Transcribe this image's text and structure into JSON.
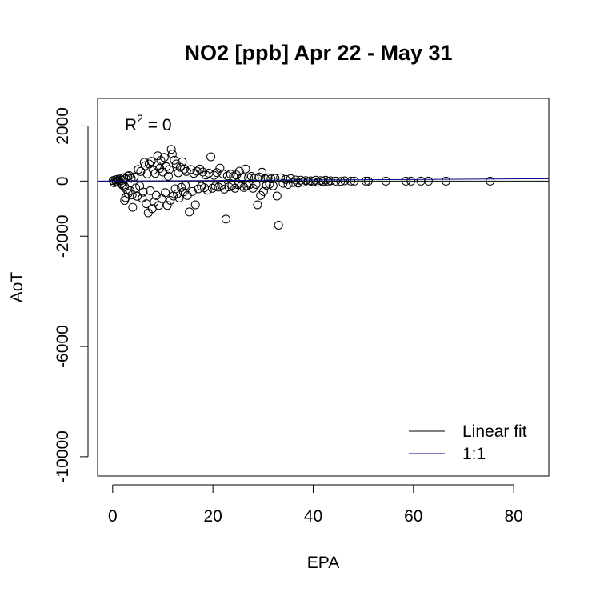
{
  "chart_data": {
    "type": "scatter",
    "title": "NO2 [ppb] Apr 22 - May 31",
    "xlabel": "EPA",
    "ylabel": "AoT",
    "xlim": [
      -3,
      87
    ],
    "ylim": [
      -10700,
      3000
    ],
    "xticks": [
      0,
      20,
      40,
      60,
      80
    ],
    "yticks": [
      2000,
      0,
      -2000,
      -6000,
      -10000
    ],
    "xtick_labels": [
      "0",
      "20",
      "40",
      "60",
      "80"
    ],
    "ytick_labels": [
      "2000",
      "0",
      "-2000",
      "-6000",
      "-10000"
    ],
    "annotation": {
      "base": "R",
      "sup": "2",
      "rest": " = 0"
    },
    "marker": "open-circle",
    "grid": false,
    "legend_position": "bottom-right",
    "legend": [
      {
        "label": "Linear fit",
        "color": "#000000"
      },
      {
        "label": "1:1",
        "color": "#00008b"
      }
    ],
    "lines": [
      {
        "name": "Linear fit",
        "color": "#000000",
        "x": [
          -3,
          87
        ],
        "y": [
          0,
          0
        ]
      },
      {
        "name": "1:1",
        "color": "#00008b",
        "x": [
          -3,
          87
        ],
        "y": [
          -3,
          87
        ]
      }
    ],
    "points": [
      [
        0.1,
        20
      ],
      [
        0.3,
        -60
      ],
      [
        0.5,
        40
      ],
      [
        0.7,
        -20
      ],
      [
        0.9,
        60
      ],
      [
        1.1,
        -40
      ],
      [
        1.3,
        10
      ],
      [
        1.5,
        80
      ],
      [
        1.7,
        -90
      ],
      [
        1.9,
        30
      ],
      [
        2.0,
        -150
      ],
      [
        2.2,
        120
      ],
      [
        2.4,
        -200
      ],
      [
        2.6,
        90
      ],
      [
        2.8,
        -300
      ],
      [
        3.0,
        180
      ],
      [
        2.4,
        -700
      ],
      [
        2.6,
        -600
      ],
      [
        3.1,
        -450
      ],
      [
        3.3,
        200
      ],
      [
        3.5,
        -350
      ],
      [
        3.7,
        100
      ],
      [
        3.9,
        -500
      ],
      [
        4.0,
        -950
      ],
      [
        4.3,
        150
      ],
      [
        4.6,
        -250
      ],
      [
        4.9,
        -550
      ],
      [
        5.1,
        420
      ],
      [
        5.4,
        -180
      ],
      [
        5.6,
        350
      ],
      [
        5.9,
        -620
      ],
      [
        6.1,
        -400
      ],
      [
        6.3,
        680
      ],
      [
        6.5,
        560
      ],
      [
        6.7,
        -820
      ],
      [
        6.9,
        260
      ],
      [
        7.1,
        -1150
      ],
      [
        7.3,
        620
      ],
      [
        7.5,
        -350
      ],
      [
        7.7,
        720
      ],
      [
        7.9,
        -1000
      ],
      [
        8.1,
        400
      ],
      [
        8.3,
        -760
      ],
      [
        8.5,
        280
      ],
      [
        8.7,
        -520
      ],
      [
        8.9,
        560
      ],
      [
        9.0,
        920
      ],
      [
        9.2,
        -880
      ],
      [
        9.4,
        460
      ],
      [
        9.6,
        750
      ],
      [
        9.8,
        -640
      ],
      [
        10.0,
        330
      ],
      [
        10.3,
        860
      ],
      [
        10.5,
        -420
      ],
      [
        10.7,
        520
      ],
      [
        10.9,
        -880
      ],
      [
        11.1,
        180
      ],
      [
        11.3,
        420
      ],
      [
        11.5,
        -700
      ],
      [
        11.7,
        1150
      ],
      [
        11.9,
        980
      ],
      [
        12.1,
        -540
      ],
      [
        12.3,
        760
      ],
      [
        12.5,
        -280
      ],
      [
        12.7,
        620
      ],
      [
        12.9,
        -460
      ],
      [
        13.1,
        300
      ],
      [
        13.3,
        -610
      ],
      [
        13.5,
        500
      ],
      [
        13.7,
        -230
      ],
      [
        13.9,
        700
      ],
      [
        14.1,
        -390
      ],
      [
        14.3,
        440
      ],
      [
        14.5,
        -160
      ],
      [
        14.7,
        350
      ],
      [
        14.9,
        -520
      ],
      [
        15.3,
        -1120
      ],
      [
        15.6,
        420
      ],
      [
        15.9,
        -380
      ],
      [
        16.2,
        280
      ],
      [
        16.5,
        -860
      ],
      [
        16.8,
        360
      ],
      [
        17.1,
        -280
      ],
      [
        17.4,
        440
      ],
      [
        17.7,
        -190
      ],
      [
        18.0,
        330
      ],
      [
        18.3,
        -240
      ],
      [
        18.6,
        220
      ],
      [
        18.9,
        -330
      ],
      [
        19.2,
        290
      ],
      [
        19.6,
        880
      ],
      [
        19.9,
        -260
      ],
      [
        20.2,
        210
      ],
      [
        20.5,
        -180
      ],
      [
        20.8,
        310
      ],
      [
        21.1,
        -220
      ],
      [
        21.4,
        470
      ],
      [
        21.7,
        -150
      ],
      [
        22.0,
        260
      ],
      [
        22.3,
        -290
      ],
      [
        22.6,
        -1380
      ],
      [
        22.9,
        190
      ],
      [
        23.2,
        -210
      ],
      [
        23.5,
        250
      ],
      [
        23.8,
        -160
      ],
      [
        24.1,
        170
      ],
      [
        24.4,
        -260
      ],
      [
        24.7,
        220
      ],
      [
        25.0,
        -130
      ],
      [
        25.3,
        360
      ],
      [
        25.6,
        -190
      ],
      [
        25.9,
        130
      ],
      [
        26.2,
        -230
      ],
      [
        26.5,
        440
      ],
      [
        26.8,
        -170
      ],
      [
        27.1,
        120
      ],
      [
        27.4,
        -120
      ],
      [
        27.7,
        170
      ],
      [
        28.0,
        -260
      ],
      [
        28.3,
        100
      ],
      [
        28.6,
        -120
      ],
      [
        28.9,
        -860
      ],
      [
        29.2,
        150
      ],
      [
        29.5,
        -520
      ],
      [
        29.8,
        320
      ],
      [
        30.1,
        -380
      ],
      [
        30.4,
        90
      ],
      [
        30.7,
        -150
      ],
      [
        31.0,
        120
      ],
      [
        31.3,
        -110
      ],
      [
        31.6,
        80
      ],
      [
        32.0,
        -170
      ],
      [
        32.4,
        100
      ],
      [
        32.8,
        -540
      ],
      [
        33.1,
        -1600
      ],
      [
        33.5,
        120
      ],
      [
        34.0,
        -80
      ],
      [
        34.5,
        60
      ],
      [
        35.0,
        -120
      ],
      [
        35.5,
        90
      ],
      [
        36.0,
        -50
      ],
      [
        36.5,
        40
      ],
      [
        37.0,
        -70
      ],
      [
        37.5,
        30
      ],
      [
        38.0,
        -40
      ],
      [
        38.5,
        20
      ],
      [
        39.0,
        -30
      ],
      [
        39.5,
        10
      ],
      [
        40.0,
        -20
      ],
      [
        40.5,
        30
      ],
      [
        41.0,
        -40
      ],
      [
        41.5,
        20
      ],
      [
        42.0,
        -10
      ],
      [
        42.5,
        30
      ],
      [
        43.0,
        -20
      ],
      [
        43.5,
        10
      ],
      [
        44.5,
        0
      ],
      [
        45.5,
        -10
      ],
      [
        46.3,
        10
      ],
      [
        47.5,
        0
      ],
      [
        48.2,
        0
      ],
      [
        50.5,
        0
      ],
      [
        51.0,
        0
      ],
      [
        54.5,
        0
      ],
      [
        58.5,
        0
      ],
      [
        59.5,
        0
      ],
      [
        61.5,
        0
      ],
      [
        63.0,
        0
      ],
      [
        66.5,
        0
      ],
      [
        75.3,
        0
      ]
    ]
  }
}
